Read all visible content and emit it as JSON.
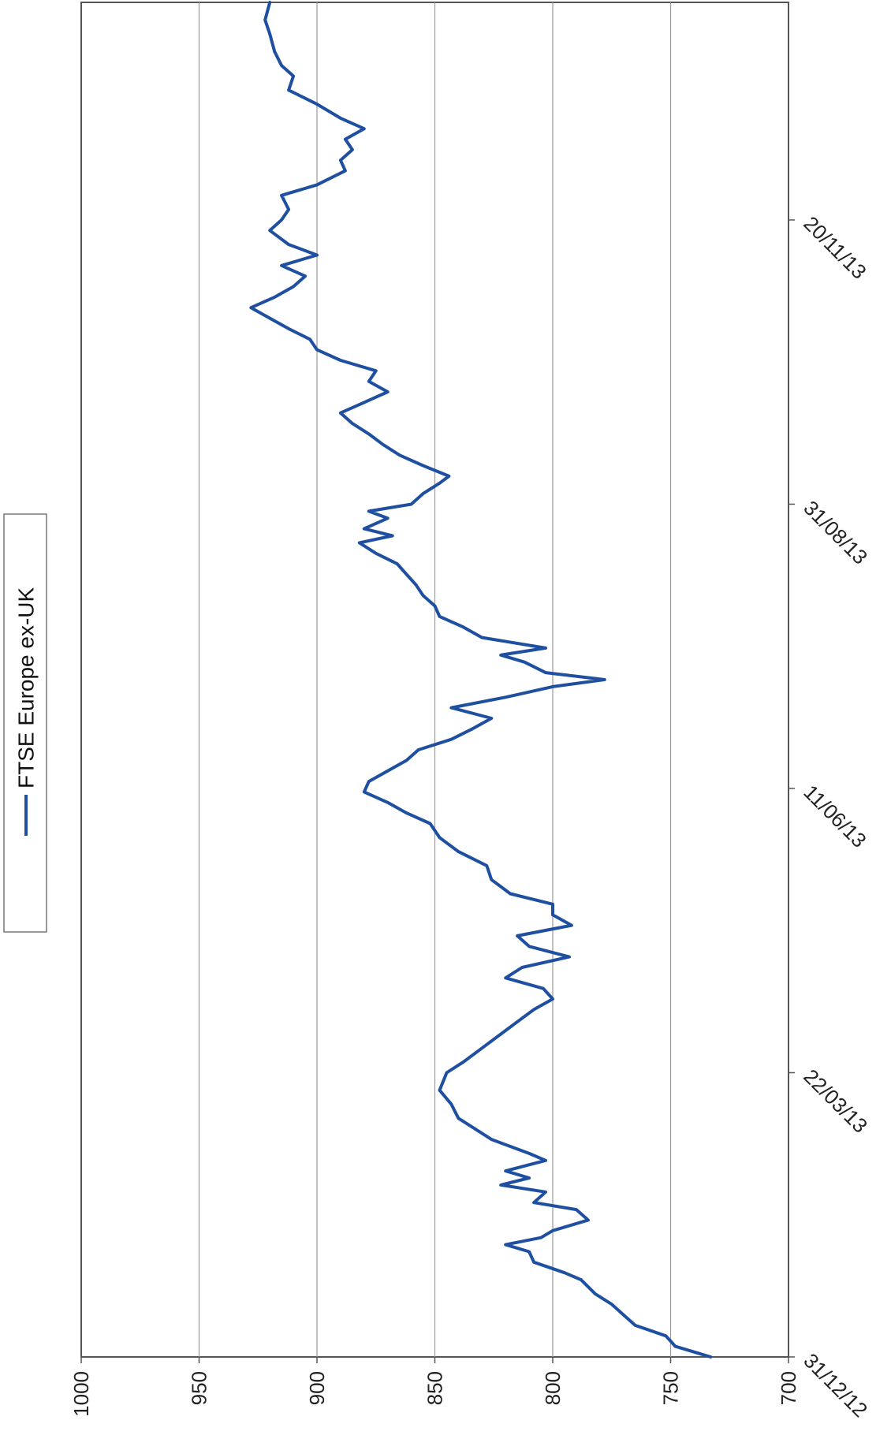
{
  "chart_data": {
    "type": "line",
    "title": "",
    "xlabel": "",
    "ylabel": "",
    "orientation": "rotated 90 degrees clockwise",
    "ylim": [
      700,
      1000
    ],
    "yticks": [
      700,
      750,
      800,
      850,
      900,
      950,
      1000
    ],
    "ytick_labels": [
      "700",
      "750",
      "800",
      "850",
      "900",
      "950",
      "1000"
    ],
    "xlim": [
      "2012-12-31",
      "2014-01-21"
    ],
    "xticks": [
      "2012-12-31",
      "2013-03-22",
      "2013-06-11",
      "2013-08-31",
      "2013-11-20"
    ],
    "xtick_labels": [
      "31/12/12",
      "22/03/13",
      "11/06/13",
      "31/08/13",
      "20/11/13"
    ],
    "grid": "horizontal",
    "legend": {
      "position": "top-left",
      "entries": [
        "FTSE Europe ex-UK"
      ]
    },
    "series": [
      {
        "name": "FTSE Europe ex-UK",
        "color": "#1f4fa0",
        "points": [
          [
            "2012-12-31",
            733
          ],
          [
            "2013-01-03",
            748
          ],
          [
            "2013-01-06",
            752
          ],
          [
            "2013-01-09",
            765
          ],
          [
            "2013-01-12",
            770
          ],
          [
            "2013-01-15",
            775
          ],
          [
            "2013-01-18",
            782
          ],
          [
            "2013-01-22",
            788
          ],
          [
            "2013-01-24",
            795
          ],
          [
            "2013-01-27",
            808
          ],
          [
            "2013-01-30",
            810
          ],
          [
            "2013-02-01",
            820
          ],
          [
            "2013-02-03",
            805
          ],
          [
            "2013-02-05",
            800
          ],
          [
            "2013-02-08",
            785
          ],
          [
            "2013-02-11",
            790
          ],
          [
            "2013-02-13",
            808
          ],
          [
            "2013-02-16",
            803
          ],
          [
            "2013-02-18",
            822
          ],
          [
            "2013-02-20",
            810
          ],
          [
            "2013-02-22",
            820
          ],
          [
            "2013-02-25",
            803
          ],
          [
            "2013-02-27",
            810
          ],
          [
            "2013-03-03",
            826
          ],
          [
            "2013-03-09",
            840
          ],
          [
            "2013-03-13",
            843
          ],
          [
            "2013-03-17",
            848
          ],
          [
            "2013-03-22",
            845
          ],
          [
            "2013-03-25",
            838
          ],
          [
            "2013-03-29",
            830
          ],
          [
            "2013-04-02",
            822
          ],
          [
            "2013-04-06",
            814
          ],
          [
            "2013-04-09",
            808
          ],
          [
            "2013-04-12",
            800
          ],
          [
            "2013-04-15",
            804
          ],
          [
            "2013-04-18",
            820
          ],
          [
            "2013-04-21",
            813
          ],
          [
            "2013-04-24",
            793
          ],
          [
            "2013-04-27",
            810
          ],
          [
            "2013-04-30",
            815
          ],
          [
            "2013-05-03",
            792
          ],
          [
            "2013-05-06",
            800
          ],
          [
            "2013-05-09",
            800
          ],
          [
            "2013-05-12",
            818
          ],
          [
            "2013-05-16",
            826
          ],
          [
            "2013-05-20",
            828
          ],
          [
            "2013-05-24",
            840
          ],
          [
            "2013-05-28",
            848
          ],
          [
            "2013-06-01",
            852
          ],
          [
            "2013-06-04",
            862
          ],
          [
            "2013-06-07",
            870
          ],
          [
            "2013-06-10",
            880
          ],
          [
            "2013-06-13",
            878
          ],
          [
            "2013-06-16",
            870
          ],
          [
            "2013-06-19",
            862
          ],
          [
            "2013-06-22",
            857
          ],
          [
            "2013-06-25",
            843
          ],
          [
            "2013-06-28",
            834
          ],
          [
            "2013-07-01",
            826
          ],
          [
            "2013-07-04",
            843
          ],
          [
            "2013-07-07",
            820
          ],
          [
            "2013-07-10",
            800
          ],
          [
            "2013-07-12",
            778
          ],
          [
            "2013-07-14",
            803
          ],
          [
            "2013-07-17",
            812
          ],
          [
            "2013-07-19",
            822
          ],
          [
            "2013-07-21",
            803
          ],
          [
            "2013-07-24",
            830
          ],
          [
            "2013-07-27",
            838
          ],
          [
            "2013-07-30",
            848
          ],
          [
            "2013-08-02",
            850
          ],
          [
            "2013-08-05",
            855
          ],
          [
            "2013-08-08",
            858
          ],
          [
            "2013-08-11",
            862
          ],
          [
            "2013-08-14",
            866
          ],
          [
            "2013-08-17",
            875
          ],
          [
            "2013-08-20",
            882
          ],
          [
            "2013-08-22",
            868
          ],
          [
            "2013-08-24",
            880
          ],
          [
            "2013-08-27",
            870
          ],
          [
            "2013-08-29",
            878
          ],
          [
            "2013-08-31",
            860
          ],
          [
            "2013-09-03",
            855
          ],
          [
            "2013-09-06",
            848
          ],
          [
            "2013-09-08",
            844
          ],
          [
            "2013-09-11",
            855
          ],
          [
            "2013-09-14",
            865
          ],
          [
            "2013-09-17",
            872
          ],
          [
            "2013-09-20",
            878
          ],
          [
            "2013-09-23",
            885
          ],
          [
            "2013-09-26",
            890
          ],
          [
            "2013-09-29",
            880
          ],
          [
            "2013-10-02",
            870
          ],
          [
            "2013-10-05",
            878
          ],
          [
            "2013-10-08",
            875
          ],
          [
            "2013-10-11",
            890
          ],
          [
            "2013-10-14",
            900
          ],
          [
            "2013-10-17",
            903
          ],
          [
            "2013-10-20",
            912
          ],
          [
            "2013-10-23",
            920
          ],
          [
            "2013-10-26",
            928
          ],
          [
            "2013-10-29",
            918
          ],
          [
            "2013-11-01",
            910
          ],
          [
            "2013-11-04",
            905
          ],
          [
            "2013-11-07",
            915
          ],
          [
            "2013-11-10",
            900
          ],
          [
            "2013-11-13",
            912
          ],
          [
            "2013-11-17",
            920
          ],
          [
            "2013-11-20",
            915
          ],
          [
            "2013-11-23",
            912
          ],
          [
            "2013-11-27",
            915
          ],
          [
            "2013-11-30",
            900
          ],
          [
            "2013-12-04",
            888
          ],
          [
            "2013-12-07",
            890
          ],
          [
            "2013-12-10",
            885
          ],
          [
            "2013-12-13",
            888
          ],
          [
            "2013-12-16",
            880
          ],
          [
            "2013-12-19",
            890
          ],
          [
            "2013-12-23",
            900
          ],
          [
            "2013-12-27",
            912
          ],
          [
            "2013-12-31",
            910
          ],
          [
            "2014-01-03",
            915
          ],
          [
            "2014-01-07",
            918
          ],
          [
            "2014-01-12",
            920
          ],
          [
            "2014-01-16",
            922
          ],
          [
            "2014-01-21",
            920
          ]
        ]
      }
    ]
  }
}
